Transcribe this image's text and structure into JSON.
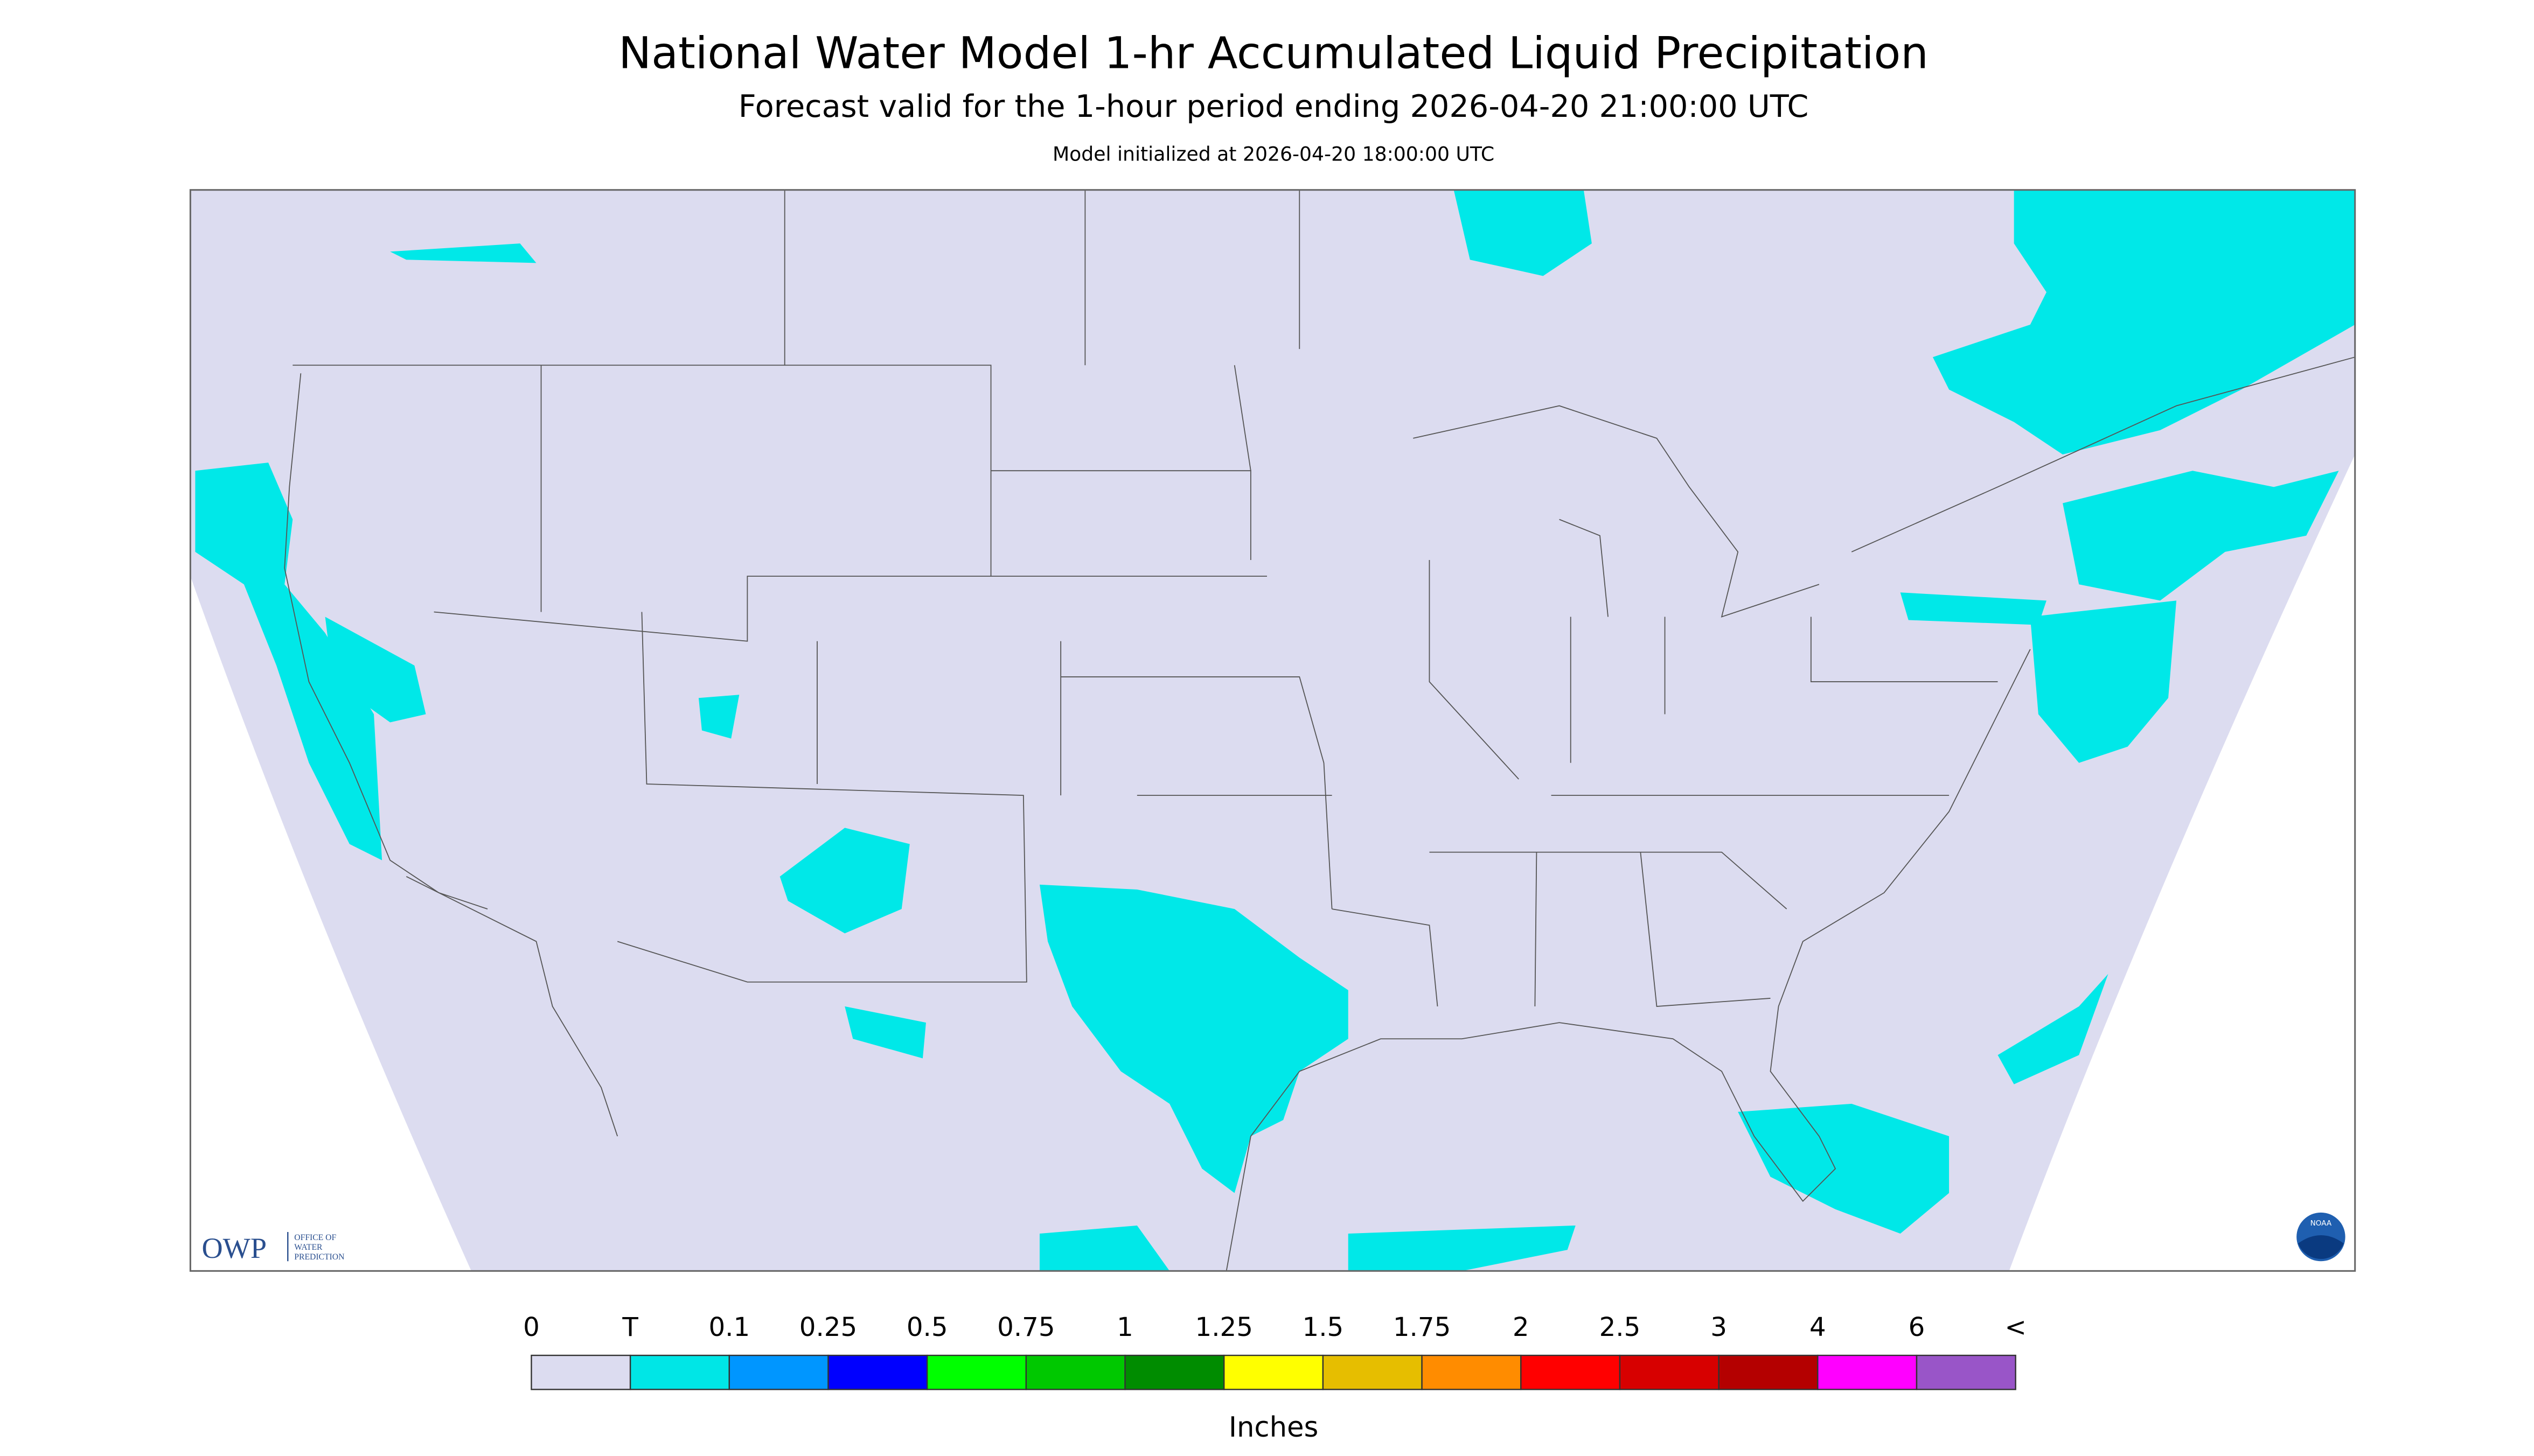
{
  "header": {
    "title": "National Water Model 1-hr Accumulated Liquid Precipitation",
    "subtitle": "Forecast valid for the 1-hour period ending 2026-04-20 21:00:00 UTC",
    "note": "Model initialized at 2026-04-20 18:00:00 UTC"
  },
  "logo": {
    "text": "OWP",
    "lines": [
      "OFFICE OF",
      "WATER",
      "PREDICTION"
    ],
    "badge": "NOAA"
  },
  "legend": {
    "labels": [
      "0",
      "T",
      "0.1",
      "0.25",
      "0.5",
      "0.75",
      "1",
      "1.25",
      "1.5",
      "1.75",
      "2",
      "2.5",
      "3",
      "4",
      "6",
      "<"
    ],
    "colors": [
      "#dcdcf0",
      "#00e6e6",
      "#0096ff",
      "#0000ff",
      "#00ff00",
      "#00c800",
      "#008c00",
      "#ffff00",
      "#e6be00",
      "#ff8c00",
      "#ff0000",
      "#d70000",
      "#b40000",
      "#ff00ff",
      "#9955c8"
    ],
    "unit": "Inches"
  }
}
